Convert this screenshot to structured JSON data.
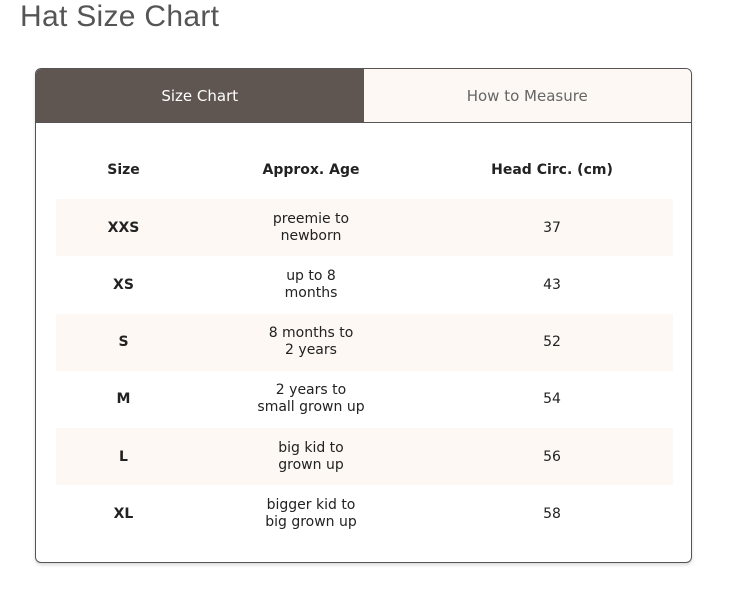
{
  "title": "Hat Size Chart",
  "tabs": [
    {
      "label": "Size Chart",
      "active": true
    },
    {
      "label": "How to Measure",
      "active": false
    }
  ],
  "table": {
    "headers": [
      "Size",
      "Approx. Age",
      "Head Circ. (cm)"
    ],
    "rows": [
      {
        "size": "XXS",
        "age1": "preemie to",
        "age2": "newborn",
        "circ": "37"
      },
      {
        "size": "XS",
        "age1": "up to 8",
        "age2": "months",
        "circ": "43"
      },
      {
        "size": "S",
        "age1": "8 months to",
        "age2": "2 years",
        "circ": "52"
      },
      {
        "size": "M",
        "age1": "2 years to",
        "age2": "small grown up",
        "circ": "54"
      },
      {
        "size": "L",
        "age1": "big kid to",
        "age2": "grown up",
        "circ": "56"
      },
      {
        "size": "XL",
        "age1": "bigger kid to",
        "age2": "big grown up",
        "circ": "58"
      }
    ]
  },
  "colors": {
    "active_tab": "#5f5652",
    "row_alt": "#fdf8f3"
  }
}
